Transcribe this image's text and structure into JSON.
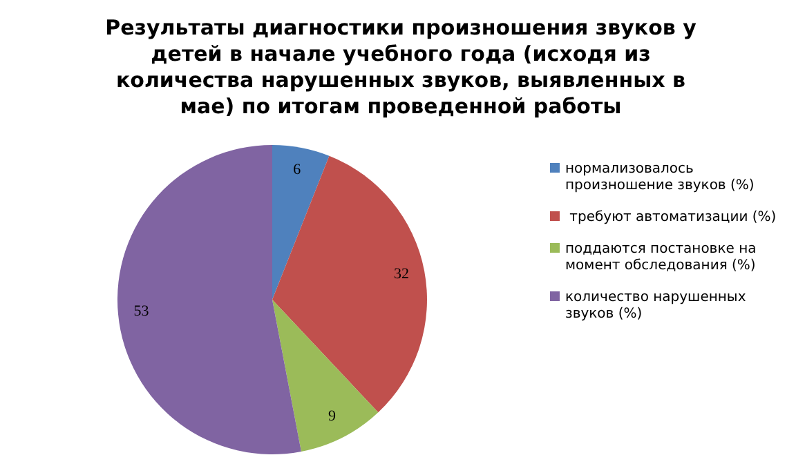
{
  "chart_data": {
    "type": "pie",
    "title": "Результаты диагностики произношения звуков у детей в начале учебного года (исходя из количества нарушенных звуков, выявленных в мае) по итогам проведенной работы",
    "categories": [
      "нормализовалось произношение звуков (%)",
      " требуют автоматизации (%)",
      "поддаются постановке на момент обследования (%)",
      "количество нарушенных звуков (%)"
    ],
    "values": [
      6,
      32,
      9,
      53
    ],
    "colors": [
      "#4f81bd",
      "#c0504d",
      "#9bbb59",
      "#8064a2"
    ],
    "data_labels": true,
    "legend": "right"
  }
}
